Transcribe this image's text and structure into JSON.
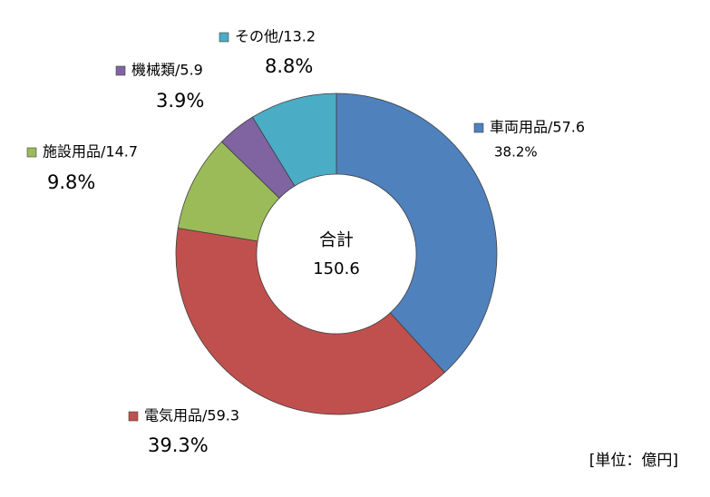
{
  "chart_data": {
    "type": "donut",
    "categories": [
      "車両用品/57.6",
      "電気用品/59.3",
      "施設用品/14.7",
      "機械類/5.9",
      "その他/13.2"
    ],
    "values": [
      57.6,
      59.3,
      14.7,
      5.9,
      13.2
    ],
    "percent": [
      38.2,
      39.3,
      9.8,
      3.9,
      8.8
    ],
    "percent_labels": [
      "38.2%",
      "39.3%",
      "9.8%",
      "3.9%",
      "8.8%"
    ],
    "colors": [
      "#4f81bd",
      "#c0504d",
      "#9bbb59",
      "#8064a2",
      "#4bacc6"
    ],
    "center_label": "合計",
    "total": 150.6,
    "unit_note": "[単位：億円]"
  }
}
